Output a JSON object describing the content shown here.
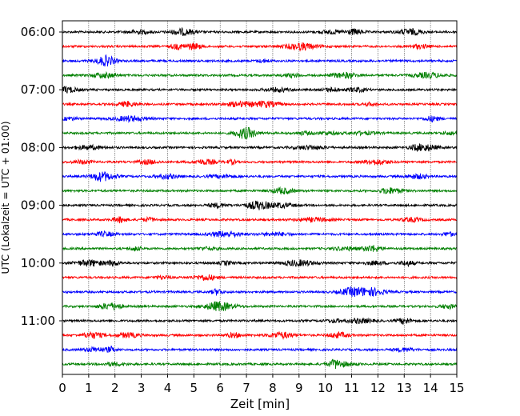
{
  "chart_data": {
    "type": "line",
    "title": "",
    "xlabel": "Zeit  [min]",
    "ylabel": "UTC (Lokalzeit = UTC + 01:00)",
    "xlim": [
      0,
      15
    ],
    "x_ticks": [
      "0",
      "1",
      "2",
      "3",
      "4",
      "5",
      "6",
      "7",
      "8",
      "9",
      "10",
      "11",
      "12",
      "13",
      "14",
      "15"
    ],
    "y_ticks": [
      "06:00",
      "07:00",
      "08:00",
      "09:00",
      "10:00",
      "11:00"
    ],
    "grid": "vertical dotted at each minute",
    "trace_interval_minutes": 15,
    "trace_start": "06:00",
    "trace_count": 24,
    "trace_colors": [
      "#000000",
      "#ff0000",
      "#0000ff",
      "#008000"
    ]
  }
}
